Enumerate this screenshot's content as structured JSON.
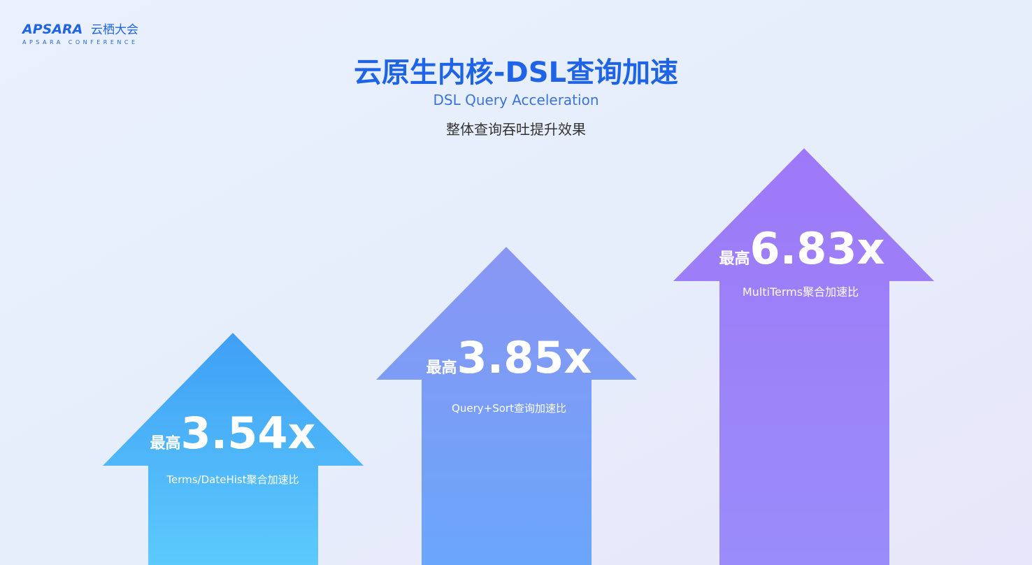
{
  "header": {
    "logo": "APSARA",
    "logo_cn": "云栖大会",
    "logo_sub": "APSARA CONFERENCE",
    "title": "云原生内核-DSL查询加速",
    "subtitle": "DSL Query Acceleration",
    "caption": "整体查询吞吐提升效果"
  },
  "arrows": [
    {
      "prefix": "最高",
      "value": "3.54x",
      "label": "Terms/DateHist聚合加速比"
    },
    {
      "prefix": "最高",
      "value": "3.85x",
      "label": "Query+Sort查询加速比"
    },
    {
      "prefix": "最高",
      "value": "6.83x",
      "label": "MultiTerms聚合加速比"
    }
  ]
}
